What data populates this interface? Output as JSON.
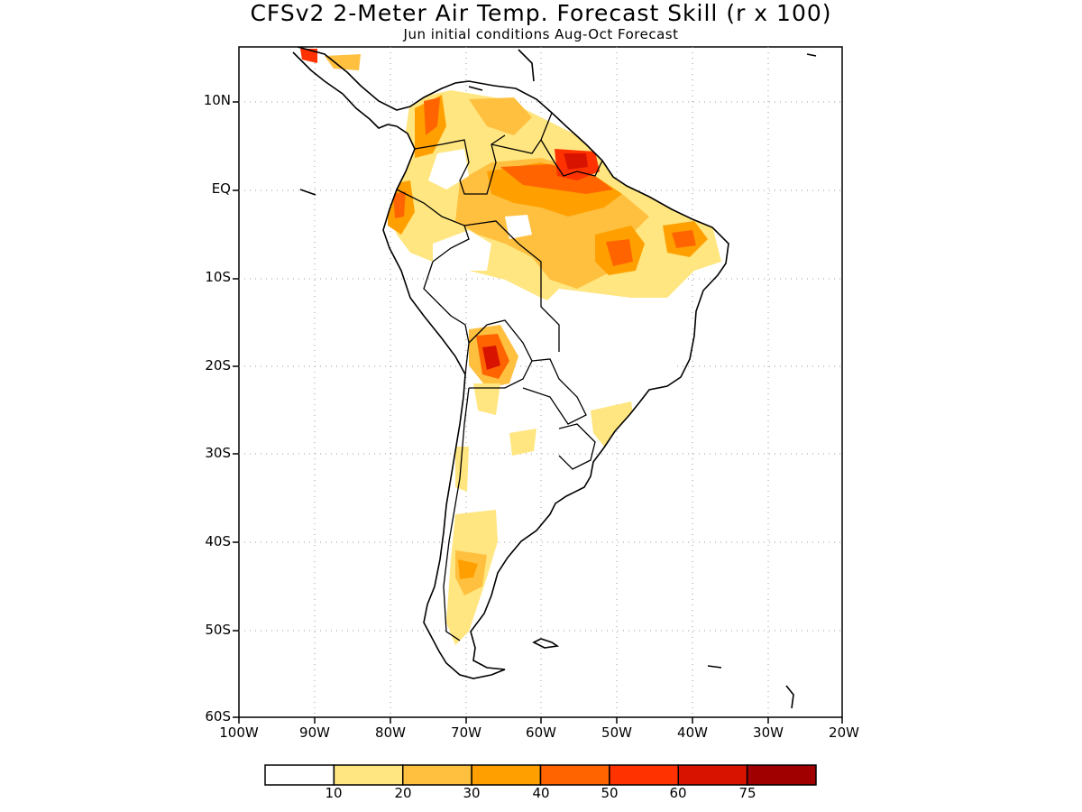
{
  "title": "CFSv2 2-Meter Air Temp. Forecast Skill (r x 100)",
  "subtitle": "Jun initial conditions  Aug-Oct Forecast",
  "axes": {
    "lat_labels": [
      "10N",
      "EQ",
      "10S",
      "20S",
      "30S",
      "40S",
      "50S",
      "60S"
    ],
    "lon_labels": [
      "100W",
      "90W",
      "80W",
      "70W",
      "60W",
      "50W",
      "40W",
      "30W",
      "20W"
    ]
  },
  "colorbar": {
    "colors": [
      "#ffffff",
      "#ffe680",
      "#ffc040",
      "#ffa000",
      "#ff6400",
      "#ff3200",
      "#d81400",
      "#a00000"
    ],
    "labels": [
      "10",
      "20",
      "30",
      "40",
      "50",
      "60",
      "75"
    ]
  },
  "icons": {
    "map": "south-america-map"
  }
}
